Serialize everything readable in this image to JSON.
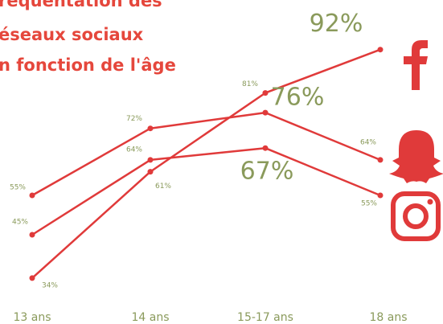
{
  "chart_data": {
    "type": "line",
    "title": [
      "réquentation des",
      "éseaux sociaux",
      "n fonction de l'âge"
    ],
    "categories": [
      "13 ans",
      "14 ans",
      "15-17 ans",
      "18 ans"
    ],
    "ylim": [
      30,
      100
    ],
    "series": [
      {
        "name": "Facebook",
        "color": "#e03a3a",
        "values": [
          34,
          61,
          81,
          92
        ],
        "value_labels": [
          "34%",
          "61%",
          "81%",
          "92%"
        ]
      },
      {
        "name": "Snapchat",
        "color": "#e03a3a",
        "values": [
          55,
          72,
          76,
          64
        ],
        "value_labels": [
          "55%",
          "72%",
          "76%",
          "64%"
        ]
      },
      {
        "name": "Instagram",
        "color": "#e03a3a",
        "values": [
          45,
          64,
          67,
          55
        ],
        "value_labels": [
          "45%",
          "64%",
          "67%",
          "55%"
        ]
      }
    ]
  }
}
